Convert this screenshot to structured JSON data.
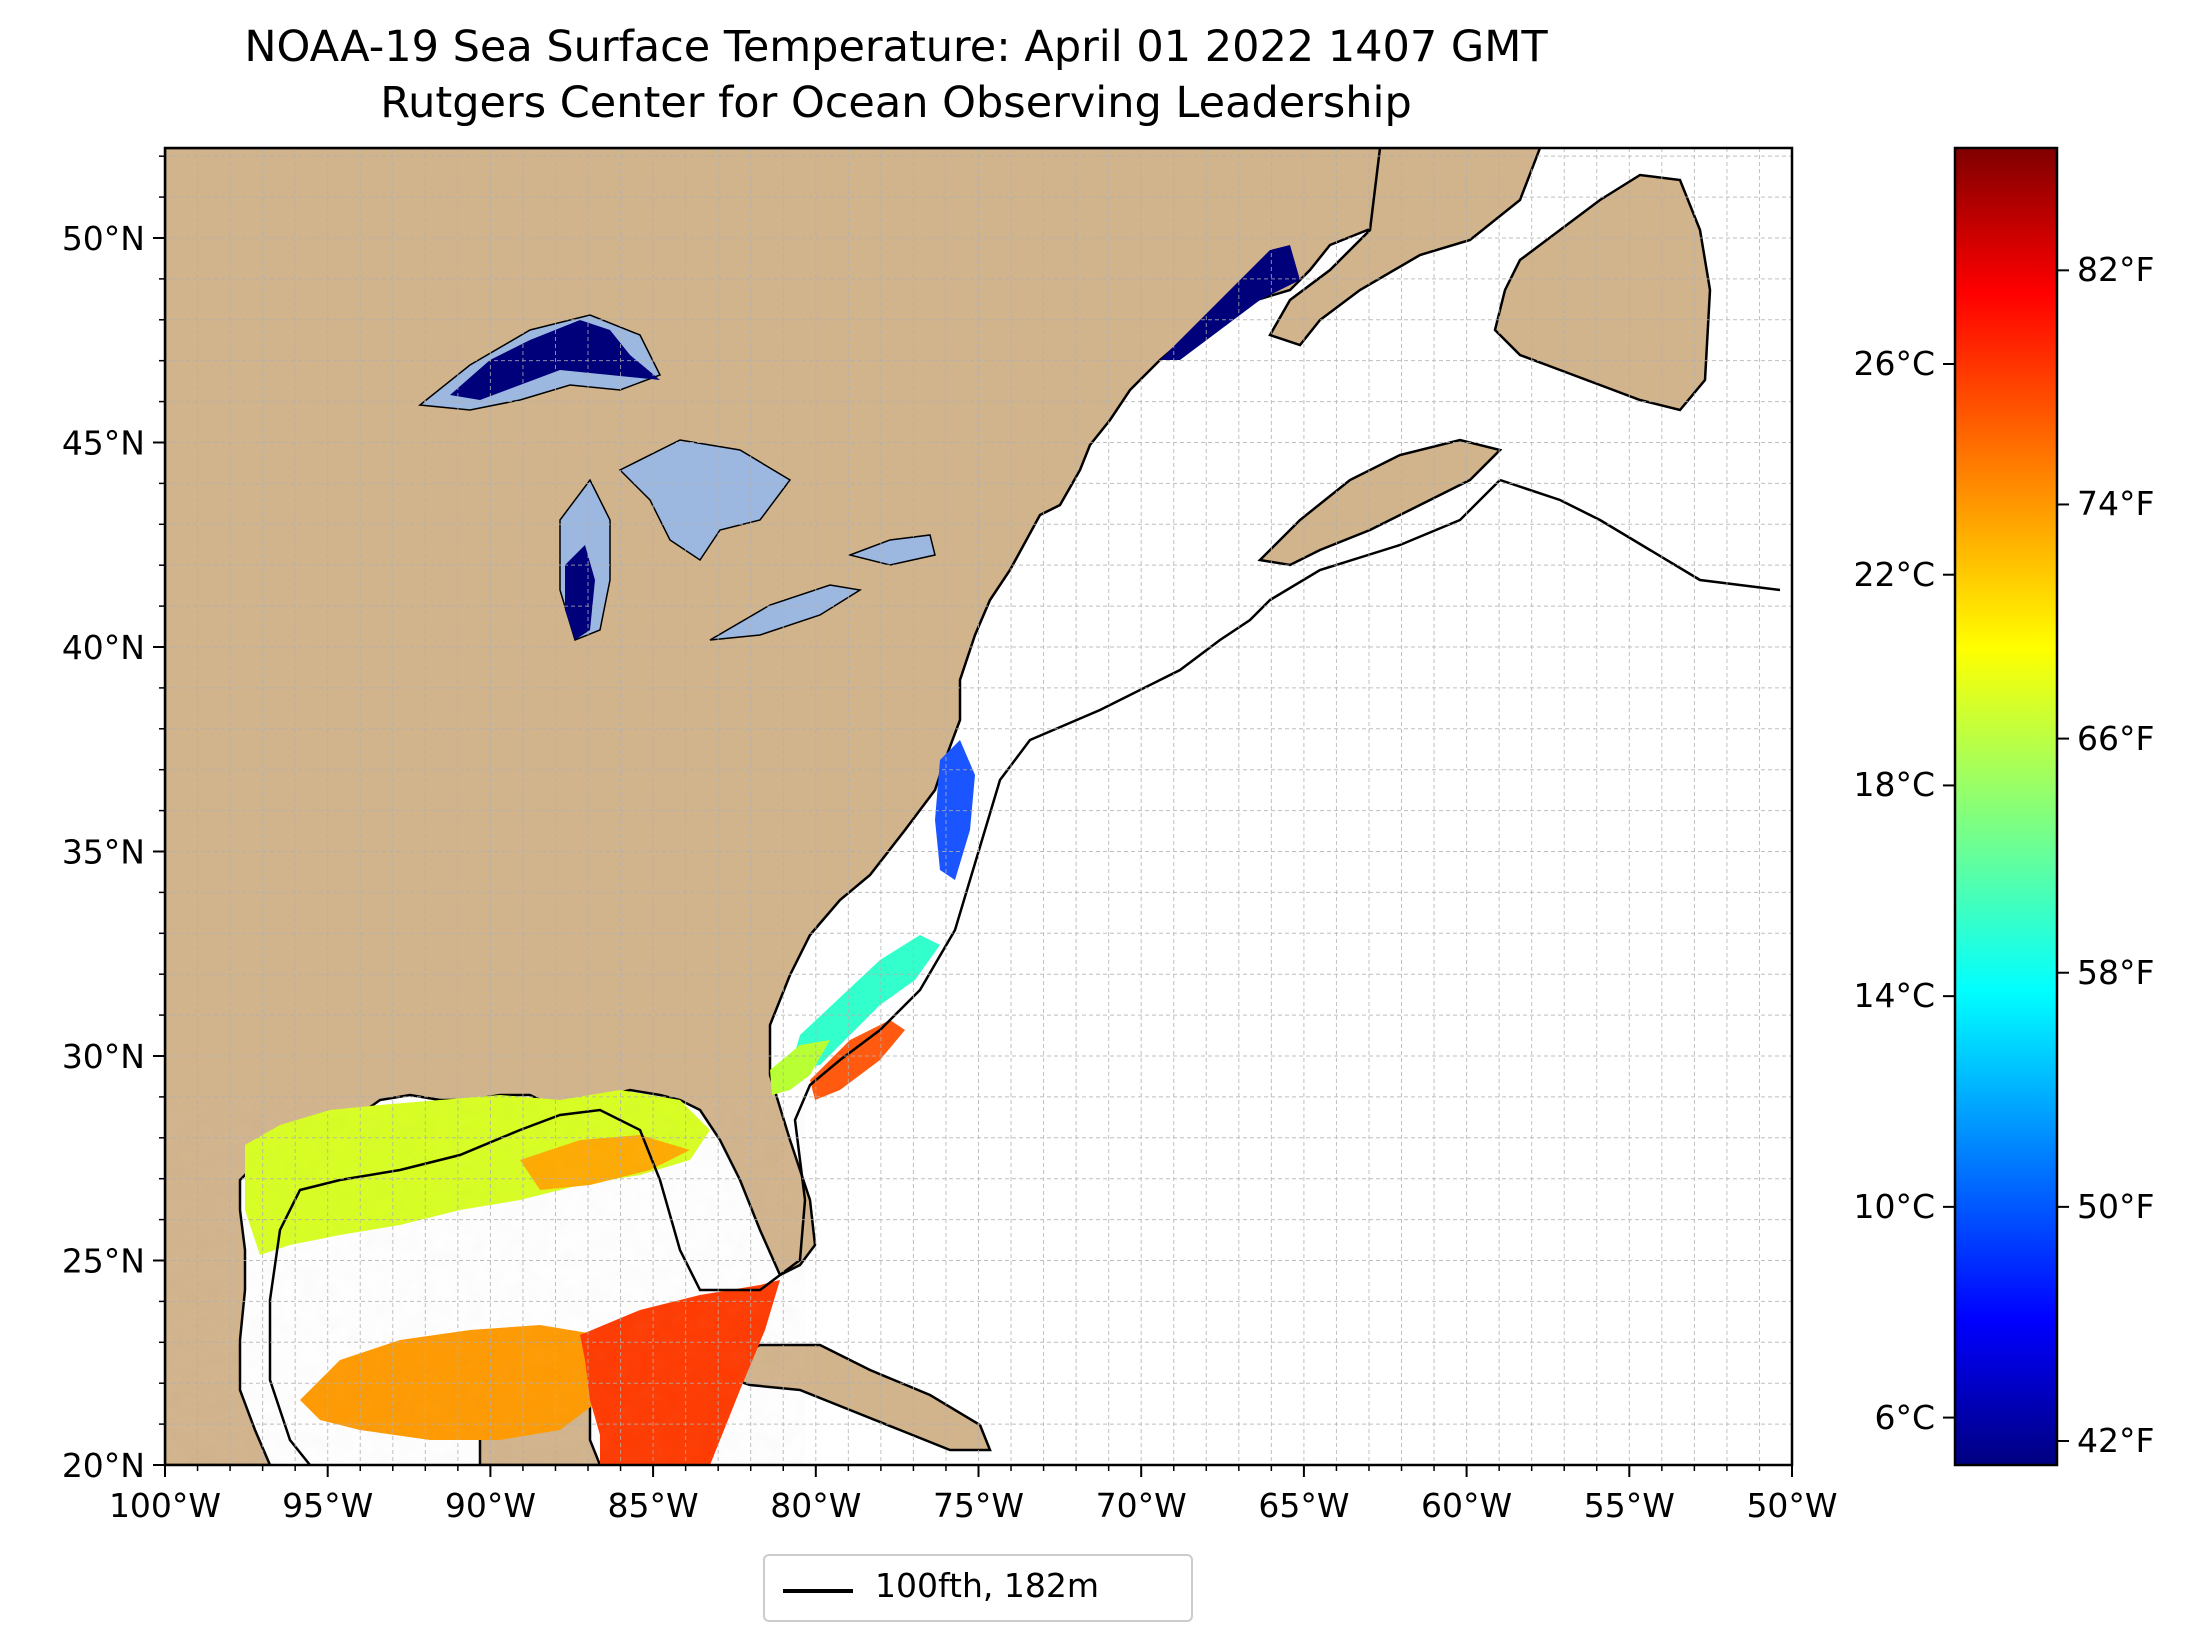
{
  "title": "NOAA-19 Sea Surface Temperature: April 01 2022 1407 GMT",
  "subtitle": "Rutgers Center for Ocean Observing Leadership",
  "map": {
    "extent": {
      "lon_min": -100,
      "lon_max": -50,
      "lat_min": 20,
      "lat_max": 52.2
    },
    "lon_ticks": [
      {
        "value": -100,
        "label": "100°W"
      },
      {
        "value": -95,
        "label": "95°W"
      },
      {
        "value": -90,
        "label": "90°W"
      },
      {
        "value": -85,
        "label": "85°W"
      },
      {
        "value": -80,
        "label": "80°W"
      },
      {
        "value": -75,
        "label": "75°W"
      },
      {
        "value": -70,
        "label": "70°W"
      },
      {
        "value": -65,
        "label": "65°W"
      },
      {
        "value": -60,
        "label": "60°W"
      },
      {
        "value": -55,
        "label": "55°W"
      },
      {
        "value": -50,
        "label": "50°W"
      }
    ],
    "lat_ticks": [
      {
        "value": 20,
        "label": "20°N"
      },
      {
        "value": 25,
        "label": "25°N"
      },
      {
        "value": 30,
        "label": "30°N"
      },
      {
        "value": 35,
        "label": "35°N"
      },
      {
        "value": 40,
        "label": "40°N"
      },
      {
        "value": 45,
        "label": "45°N"
      },
      {
        "value": 50,
        "label": "50°N"
      }
    ],
    "grid": true,
    "colors": {
      "land": "#d2b48c",
      "lakes": "#9db8e0",
      "ocean": "#ffffff",
      "border": "#000000"
    }
  },
  "legend": {
    "label": "100fth, 182m",
    "position": "bottom-center"
  },
  "colorbar": {
    "range_c": [
      5.1,
      30.1
    ],
    "celsius_ticks": [
      {
        "value": 6,
        "label": "6°C"
      },
      {
        "value": 10,
        "label": "10°C"
      },
      {
        "value": 14,
        "label": "14°C"
      },
      {
        "value": 18,
        "label": "18°C"
      },
      {
        "value": 22,
        "label": "22°C"
      },
      {
        "value": 26,
        "label": "26°C"
      }
    ],
    "fahrenheit_ticks": [
      {
        "value": 42,
        "label": "42°F"
      },
      {
        "value": 50,
        "label": "50°F"
      },
      {
        "value": 58,
        "label": "58°F"
      },
      {
        "value": 66,
        "label": "66°F"
      },
      {
        "value": 74,
        "label": "74°F"
      },
      {
        "value": 82,
        "label": "82°F"
      }
    ],
    "colormap": "jet"
  }
}
